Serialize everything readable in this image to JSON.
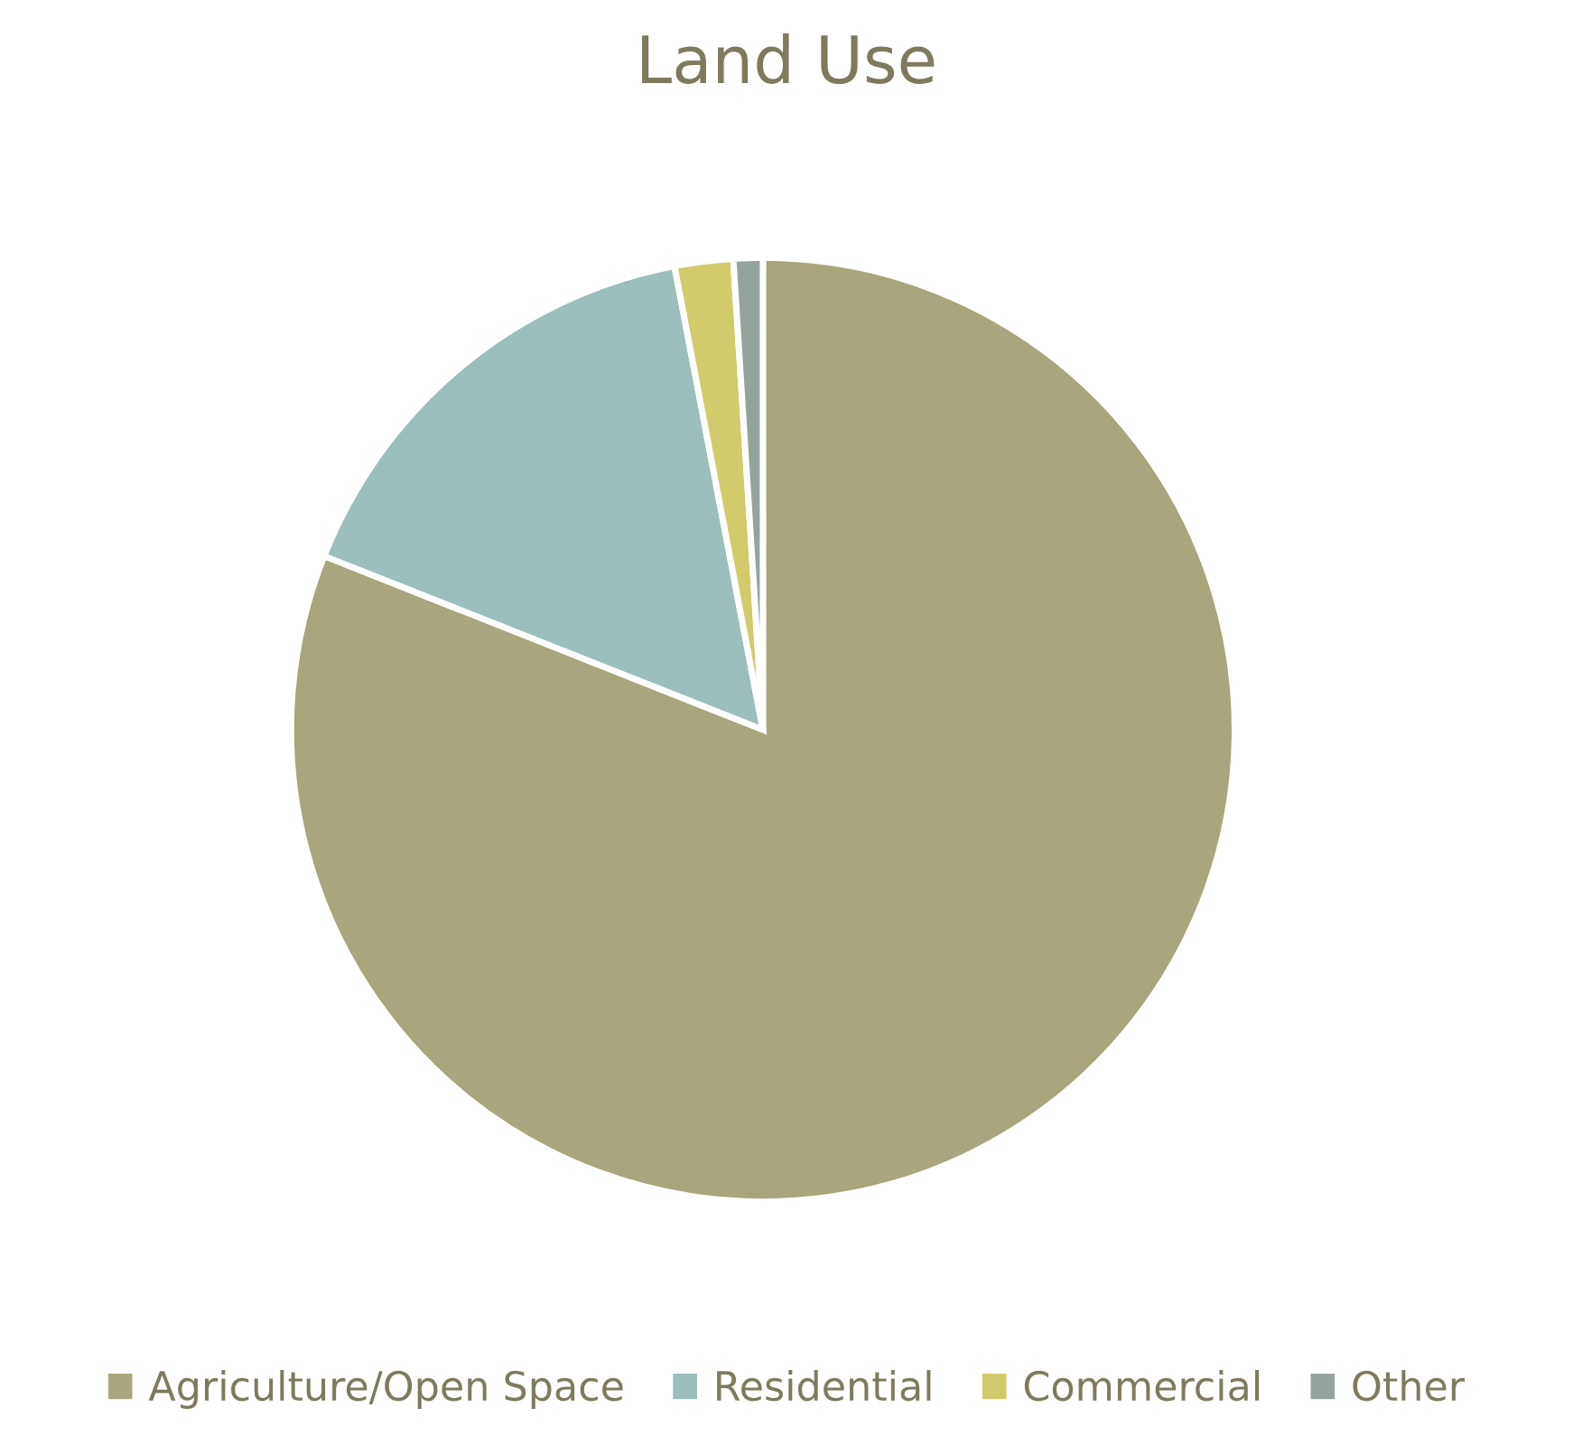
{
  "chart_data": {
    "type": "pie",
    "title": "Land Use",
    "categories": [
      "Agriculture/Open Space",
      "Residential",
      "Commercial",
      "Other"
    ],
    "values": [
      81,
      16,
      2,
      1
    ],
    "colors": [
      "#a9a57c",
      "#9cbebd",
      "#d2cb6c",
      "#95a39d"
    ],
    "legend": "bottom"
  }
}
